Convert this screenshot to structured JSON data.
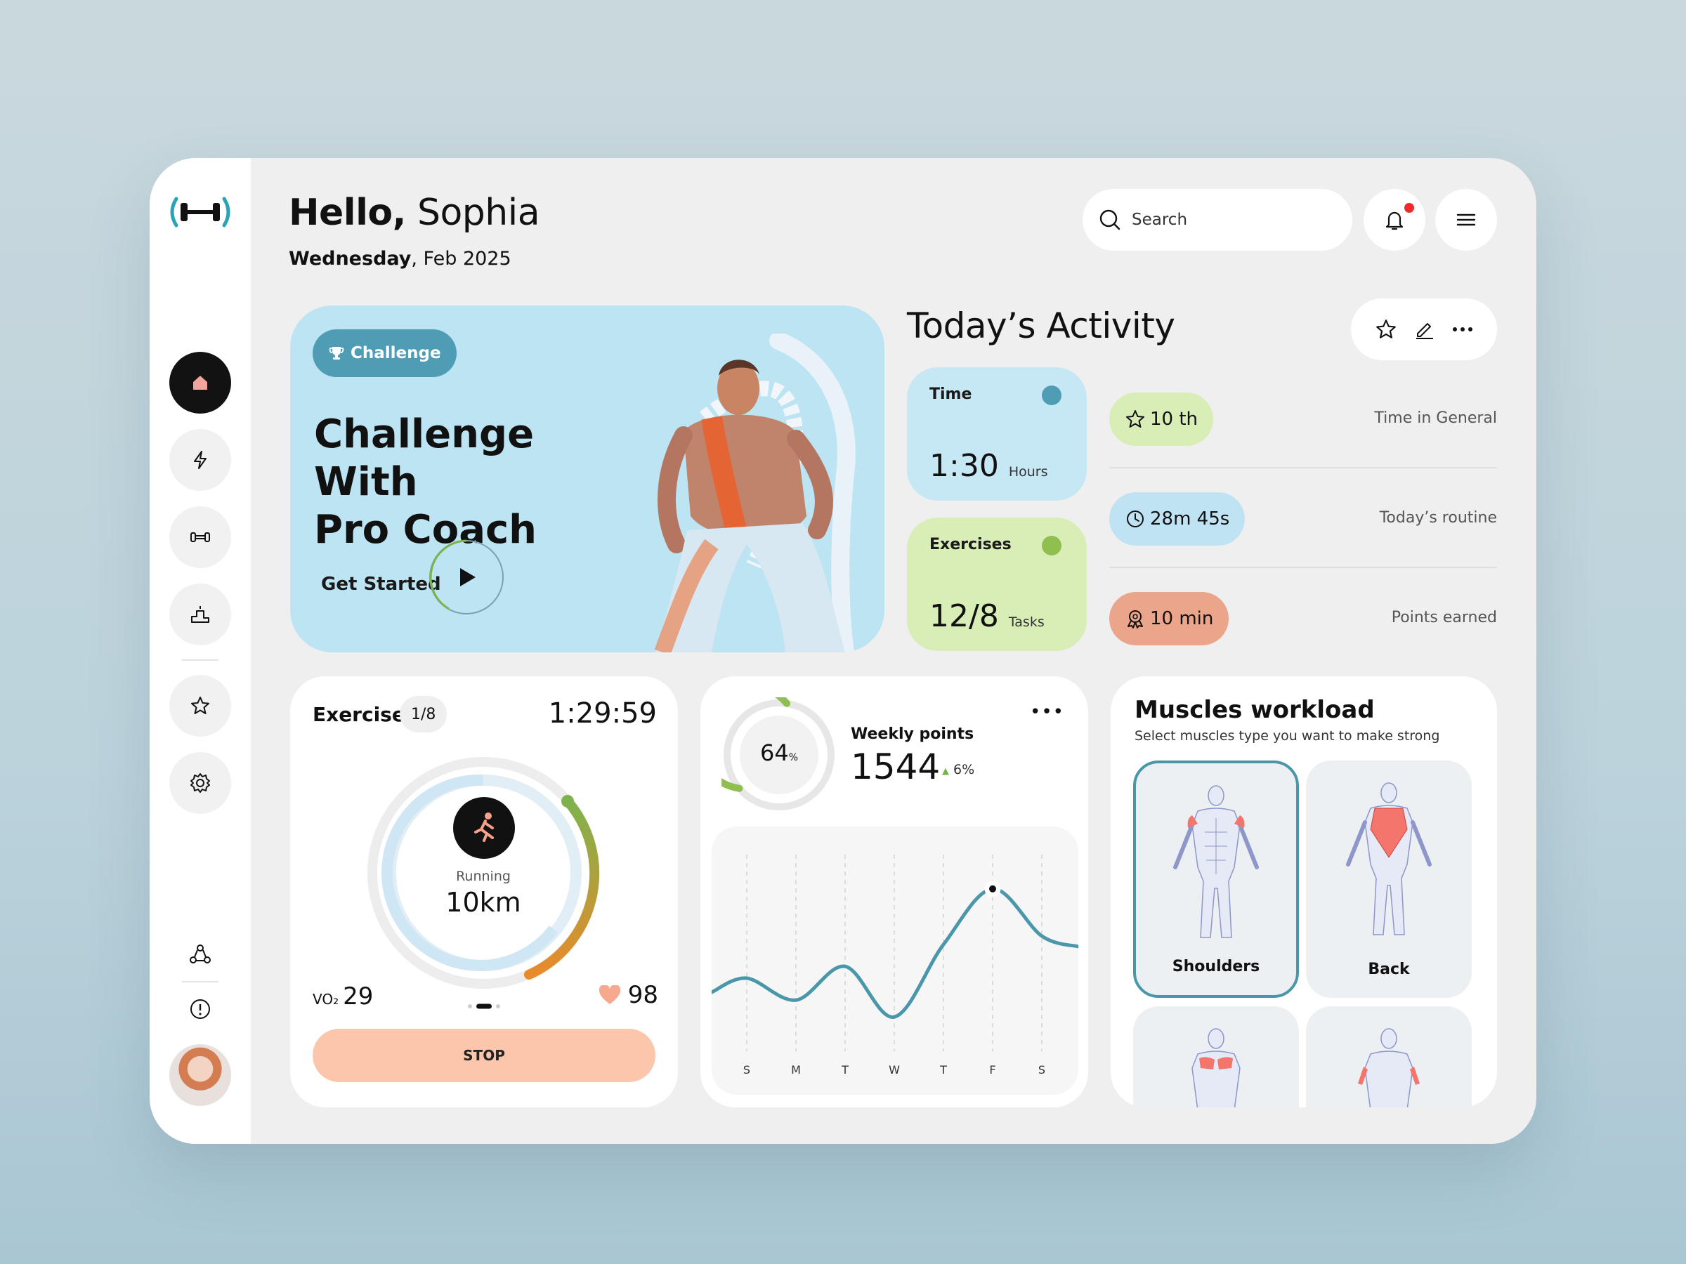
{
  "greeting": {
    "hello": "Hello,",
    "name": "Sophia"
  },
  "date": {
    "day": "Wednesday",
    "rest": ", Feb 2025"
  },
  "search": {
    "placeholder": "Search"
  },
  "hero": {
    "badge": "Challenge",
    "title_line1": "Challenge With",
    "title_line2": "Pro Coach",
    "cta": "Get Started"
  },
  "activity": {
    "title": "Today’s Activity",
    "tiles": [
      {
        "label": "Time",
        "value": "1:30",
        "unit": "Hours",
        "bg": "#c6e7f4",
        "mark": "#4f9db5"
      },
      {
        "label": "Exercises",
        "value": "12/8",
        "unit": "Tasks",
        "bg": "#d9edb7",
        "mark": "#8fbf4f"
      }
    ],
    "stats": [
      {
        "pill": "10 th",
        "note": "Time in General",
        "bg": "#d9edb7",
        "icon": "star-icon"
      },
      {
        "pill": "28m 45s",
        "note": "Today’s routine",
        "bg": "#bfe3f3",
        "icon": "clock-icon"
      },
      {
        "pill": "10 min",
        "note": "Points earned",
        "bg": "#eba58a",
        "icon": "award-icon"
      }
    ]
  },
  "exercise": {
    "title": "Exercise",
    "badge": "1/8",
    "timer": "1:29:59",
    "activity_label": "Running",
    "distance": "10km",
    "vo2_label": "VO₂",
    "vo2_value": "29",
    "heart_rate": "98",
    "stop_label": "STOP",
    "page_indicator": {
      "current": 2,
      "total": 3
    }
  },
  "weekly": {
    "percent": "64",
    "percent_unit": "%",
    "percent_value": 64,
    "label": "Weekly points",
    "value": "1544",
    "delta": "6%",
    "more": "•••",
    "days": [
      "S",
      "M",
      "T",
      "W",
      "T",
      "F",
      "S"
    ]
  },
  "chart_data": {
    "type": "line",
    "categories": [
      "S",
      "M",
      "T",
      "W",
      "T",
      "F",
      "S"
    ],
    "series": [
      {
        "values": [
          35,
          22,
          42,
          12,
          55,
          88,
          60
        ]
      }
    ],
    "highlight_index": 5,
    "ylim": [
      0,
      100
    ],
    "grid": "vertical-dashed"
  },
  "muscles": {
    "title": "Muscles workload",
    "subtitle": "Select muscles type you want to make strong",
    "cards": [
      {
        "label": "Shoulders",
        "selected": true
      },
      {
        "label": "Back",
        "selected": false
      },
      {
        "label": "",
        "selected": false
      },
      {
        "label": "",
        "selected": false
      }
    ]
  },
  "colors": {
    "accent_teal": "#4f9db5",
    "accent_green": "#8fbf4f",
    "accent_orange": "#e98a2b",
    "stop_bg": "#fcc6ad",
    "notification_dot": "#ee2a2a"
  }
}
